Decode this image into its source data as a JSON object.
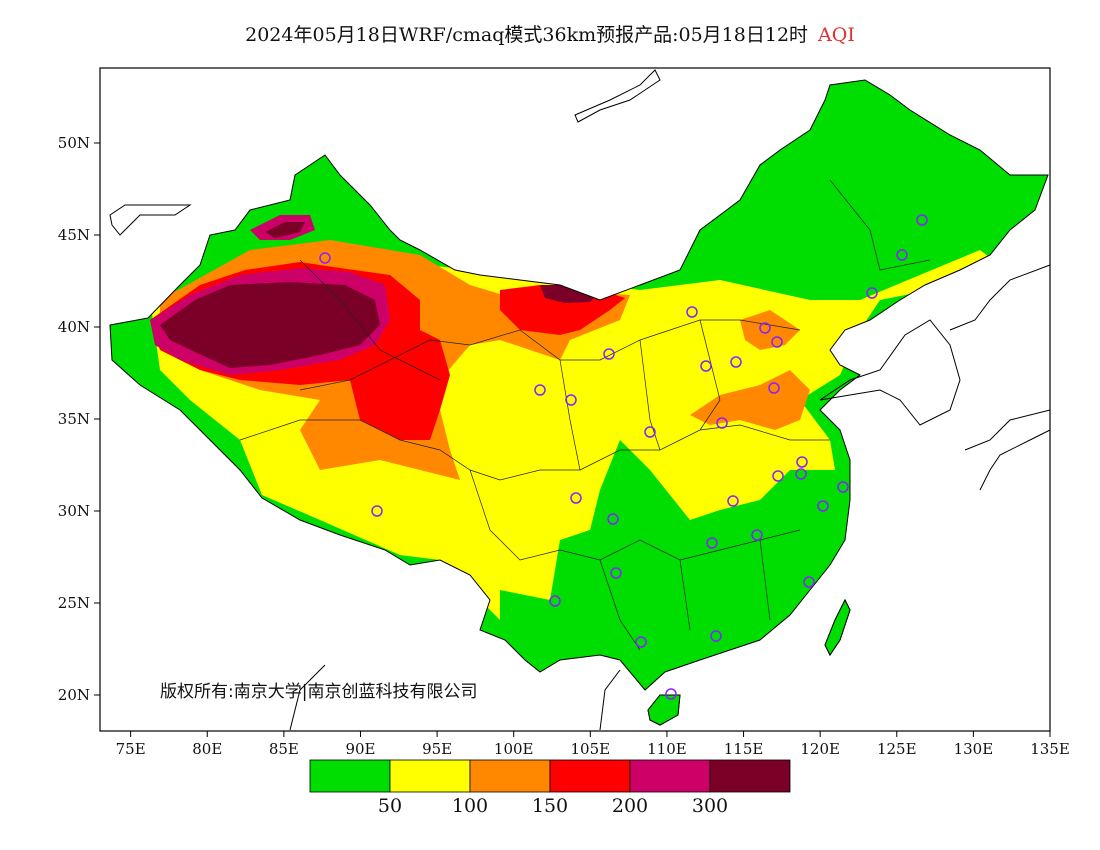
{
  "title": {
    "main": "2024年05月18日WRF/cmaq模式36km预报产品:05月18日12时",
    "variable": "AQI",
    "variable_color": "#e03030"
  },
  "axes": {
    "lon_ticks": [
      "75E",
      "80E",
      "85E",
      "90E",
      "95E",
      "100E",
      "105E",
      "110E",
      "115E",
      "120E",
      "125E",
      "130E",
      "135E"
    ],
    "lat_ticks": [
      "50N",
      "45N",
      "40N",
      "35N",
      "30N",
      "25N",
      "20N"
    ]
  },
  "copyright": "版权所有:南京大学|南京创蓝科技有限公司",
  "colorbar": {
    "colors": [
      "#00dd00",
      "#ffff00",
      "#ff8800",
      "#ff0000",
      "#cc0066",
      "#7a0028"
    ],
    "labels": [
      "50",
      "100",
      "150",
      "200",
      "300"
    ]
  },
  "map": {
    "background": "#ffffff",
    "border_color": "#000000",
    "station_marker_color": "#8822ff",
    "station_marker": "circle-icon"
  }
}
